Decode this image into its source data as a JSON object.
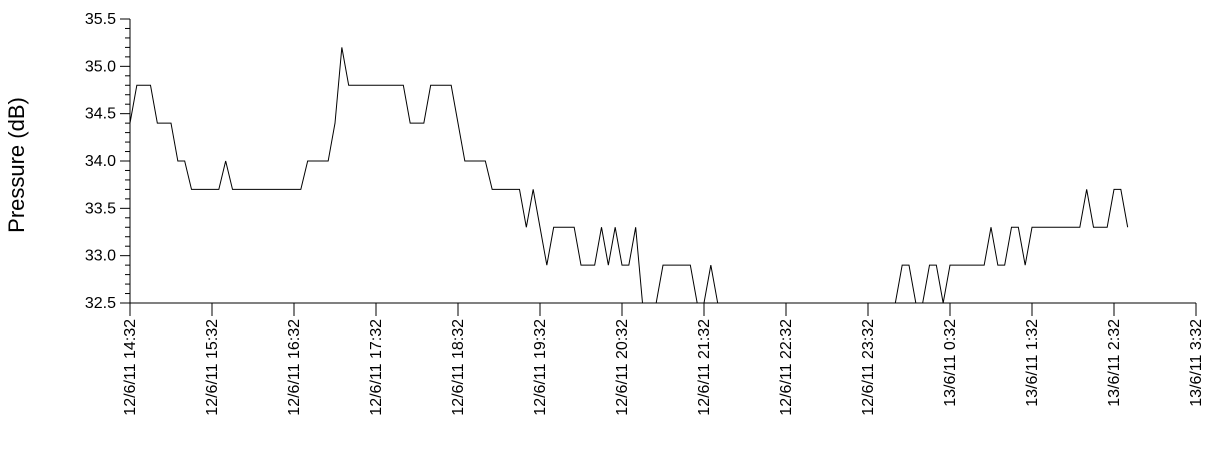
{
  "chart_data": {
    "type": "line",
    "title": "",
    "xlabel": "",
    "ylabel": "Pressure (dB)",
    "ylim": [
      32.5,
      35.5
    ],
    "xlim": [
      "12/6/11 14:32",
      "13/6/11 3:32"
    ],
    "y_ticks": [
      "32.5",
      "33.0",
      "33.5",
      "34.0",
      "34.5",
      "35.0",
      "35.5"
    ],
    "y_tick_values": [
      32.5,
      33.0,
      33.5,
      34.0,
      34.5,
      35.0,
      35.5
    ],
    "x_ticks": [
      "12/6/11 14:32",
      "12/6/11 15:32",
      "12/6/11 16:32",
      "12/6/11 17:32",
      "12/6/11 18:32",
      "12/6/11 19:32",
      "12/6/11 20:32",
      "12/6/11 21:32",
      "12/6/11 22:32",
      "12/6/11 23:32",
      "13/6/11 0:32",
      "13/6/11 1:32",
      "13/6/11 2:32",
      "13/6/11 3:32"
    ],
    "grid": false,
    "legend": "none",
    "line_color": "#000000",
    "series": [
      {
        "x": [
          "12/6/11 14:32",
          "12/6/11 14:37",
          "12/6/11 14:47",
          "12/6/11 14:52",
          "12/6/11 15:02",
          "12/6/11 15:07",
          "12/6/11 15:12",
          "12/6/11 15:17",
          "12/6/11 15:37",
          "12/6/11 15:42",
          "12/6/11 15:47",
          "12/6/11 16:37",
          "12/6/11 16:42",
          "12/6/11 16:57",
          "12/6/11 17:02",
          "12/6/11 17:07",
          "12/6/11 17:12",
          "12/6/11 17:52",
          "12/6/11 17:57",
          "12/6/11 18:07",
          "12/6/11 18:12",
          "12/6/11 18:27",
          "12/6/11 18:32",
          "12/6/11 18:37",
          "12/6/11 18:52",
          "12/6/11 18:57",
          "12/6/11 19:17",
          "12/6/11 19:22",
          "12/6/11 19:27",
          "12/6/11 19:32",
          "12/6/11 19:37",
          "12/6/11 19:42",
          "12/6/11 19:57",
          "12/6/11 20:02",
          "12/6/11 20:12",
          "12/6/11 20:17",
          "12/6/11 20:22",
          "12/6/11 20:27",
          "12/6/11 20:32",
          "12/6/11 20:37",
          "12/6/11 20:42",
          "12/6/11 20:47",
          "12/6/11 20:57",
          "12/6/11 21:02",
          "12/6/11 21:22",
          "12/6/11 21:27",
          "12/6/11 21:32",
          "12/6/11 21:37",
          "12/6/11 21:42",
          "12/6/11 22:02",
          "12/6/11 23:52",
          "12/6/11 23:57",
          "13/6/11 0:02",
          "13/6/11 0:07",
          "13/6/11 0:12",
          "13/6/11 0:17",
          "13/6/11 0:22",
          "13/6/11 0:27",
          "13/6/11 0:32",
          "13/6/11 0:57",
          "13/6/11 1:02",
          "13/6/11 1:07",
          "13/6/11 1:12",
          "13/6/11 1:17",
          "13/6/11 1:22",
          "13/6/11 1:27",
          "13/6/11 1:32",
          "13/6/11 1:37",
          "13/6/11 1:42",
          "13/6/11 2:07",
          "13/6/11 2:12",
          "13/6/11 2:17",
          "13/6/11 2:27",
          "13/6/11 2:32",
          "13/6/11 2:37",
          "13/6/11 2:42"
        ],
        "values": [
          34.4,
          34.8,
          34.8,
          34.4,
          34.4,
          34.0,
          34.0,
          33.7,
          33.7,
          34.0,
          33.7,
          33.7,
          34.0,
          34.0,
          34.4,
          35.2,
          34.8,
          34.8,
          34.4,
          34.4,
          34.8,
          34.8,
          34.4,
          34.0,
          34.0,
          33.7,
          33.7,
          33.3,
          33.7,
          33.3,
          32.9,
          33.3,
          33.3,
          32.9,
          32.9,
          33.3,
          32.9,
          33.3,
          32.9,
          32.9,
          33.3,
          32.5,
          32.5,
          32.9,
          32.9,
          32.5,
          32.5,
          32.9,
          32.5,
          32.5,
          32.5,
          32.9,
          32.9,
          32.5,
          32.5,
          32.9,
          32.9,
          32.5,
          32.9,
          32.9,
          33.3,
          32.9,
          32.9,
          33.3,
          33.3,
          32.9,
          33.3,
          33.3,
          33.3,
          33.3,
          33.7,
          33.3,
          33.3,
          33.7,
          33.7,
          33.3
        ]
      }
    ]
  }
}
